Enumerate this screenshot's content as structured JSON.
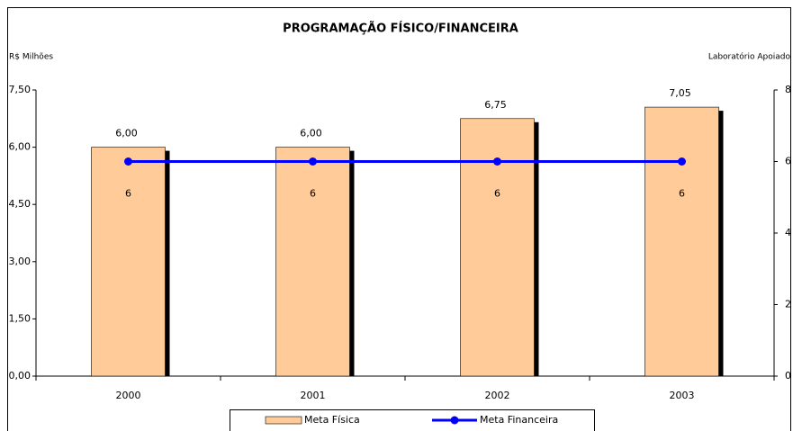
{
  "chart_data": {
    "type": "combo",
    "title": "PROGRAMAÇÃO FÍSICO/FINANCEIRA",
    "y_label": "R$ Milhões",
    "y2_label": "Laboratório Apoiado",
    "categories": [
      "2000",
      "2001",
      "2002",
      "2003"
    ],
    "series": [
      {
        "name": "Meta Física",
        "type": "bar",
        "color": "#ffcc99",
        "values": [
          6.0,
          6.0,
          6.75,
          7.05
        ],
        "value_labels": [
          "6,00",
          "6,00",
          "6,75",
          "7,05"
        ]
      },
      {
        "name": "Meta Financeira",
        "type": "line",
        "axis": "y2",
        "color": "#0000ff",
        "values": [
          6,
          6,
          6,
          6
        ]
      }
    ],
    "ylim": [
      0,
      7.5
    ],
    "yticks": [
      {
        "value": 0,
        "label": "0,00"
      },
      {
        "value": 1.5,
        "label": "1,50"
      },
      {
        "value": 3,
        "label": "3,00"
      },
      {
        "value": 4.5,
        "label": "4,50"
      },
      {
        "value": 6,
        "label": "6,00"
      },
      {
        "value": 7.5,
        "label": "7,50"
      }
    ],
    "y2lim": [
      0,
      8
    ],
    "y2ticks": [
      0,
      2,
      4,
      6,
      8
    ],
    "grid": false,
    "legend": "bottom"
  }
}
